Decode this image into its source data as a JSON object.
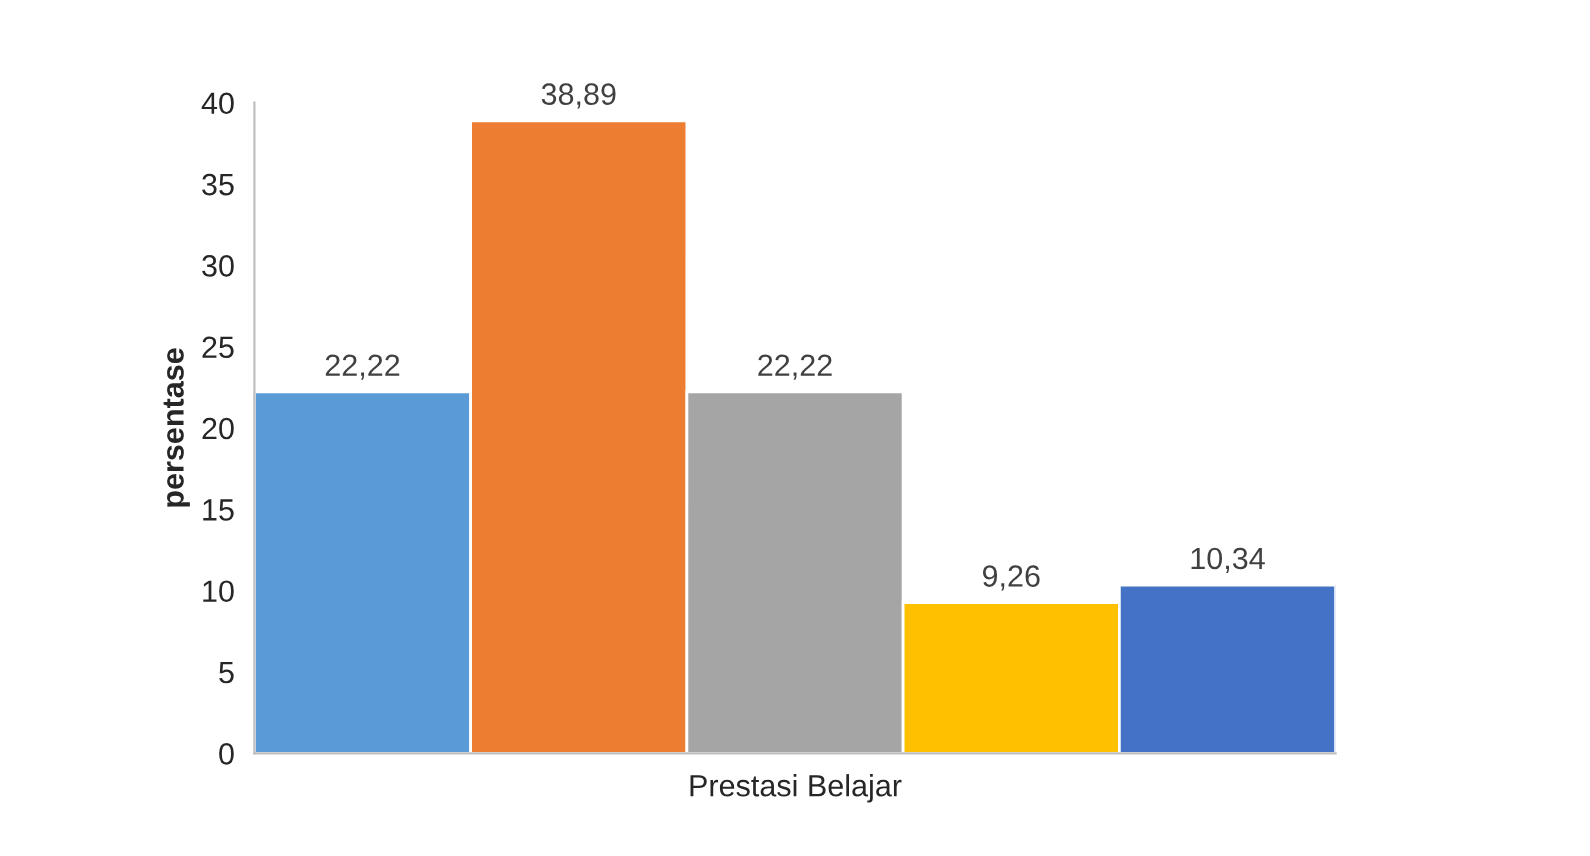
{
  "chart_data": {
    "type": "bar",
    "xlabel": "Prestasi Belajar",
    "ylabel": "persentase",
    "categories": [
      null,
      null,
      null,
      null,
      null
    ],
    "values": [
      22.22,
      38.89,
      22.22,
      9.26,
      10.34
    ],
    "colors": [
      "#5b9bd5",
      "#ed7d31",
      "#a5a5a5",
      "#ffc000",
      "#4472c4"
    ],
    "value_labels": [
      "22,22",
      "38,89",
      "22,22",
      "9,26",
      "10,34"
    ],
    "ylim": [
      0,
      40
    ],
    "yticks": [
      0,
      5,
      10,
      15,
      20,
      25,
      30,
      35,
      40
    ],
    "grid": false
  }
}
